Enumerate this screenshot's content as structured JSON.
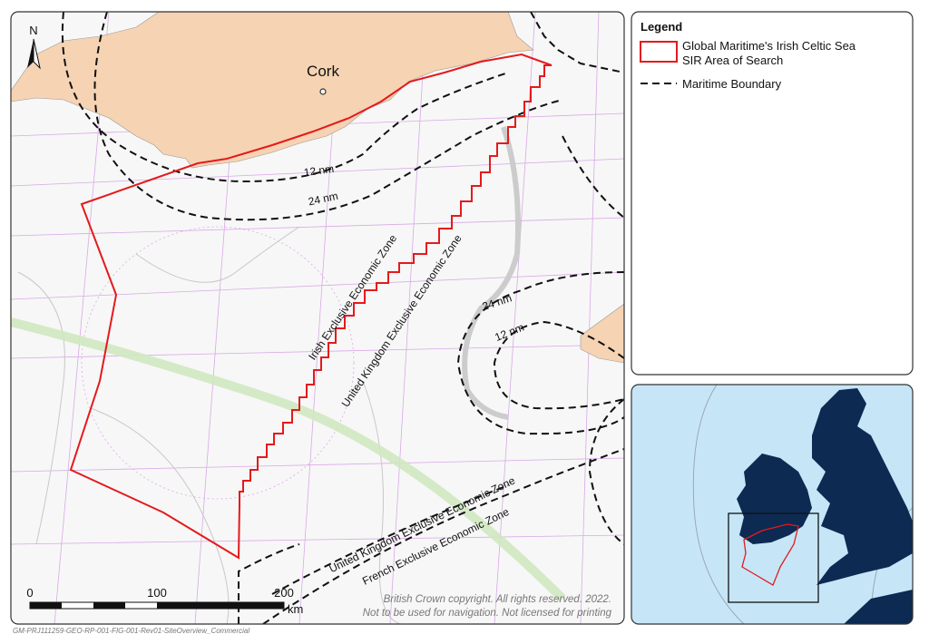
{
  "map": {
    "north_label": "N",
    "place": "Cork",
    "boundary_labels": [
      "12 nm",
      "24 nm",
      "24 nm",
      "12 nm"
    ],
    "zone_labels": [
      "Irish Exclusive Economic Zone",
      "United Kingdom Exclusive Economic Zone",
      "United Kingdom Exclusive Economic Zone",
      "French Exclusive Economic Zone"
    ],
    "scale_bar": {
      "ticks": [
        0,
        100,
        200
      ],
      "unit": "km"
    },
    "copyright": [
      "British Crown copyright. All rights reserved. 2022.",
      "Not to be used for navigation. Not licensed for printing"
    ]
  },
  "legend": {
    "title": "Legend",
    "items": [
      {
        "lines": [
          "Global Maritime's Irish Celtic Sea",
          "SIR Area of Search"
        ]
      },
      {
        "lines": [
          "Maritime Boundary"
        ]
      }
    ]
  },
  "footer": "GM-PRJ111259-GEO-RP-001-FIG-001-Rev01-SiteOverview_Commercial"
}
